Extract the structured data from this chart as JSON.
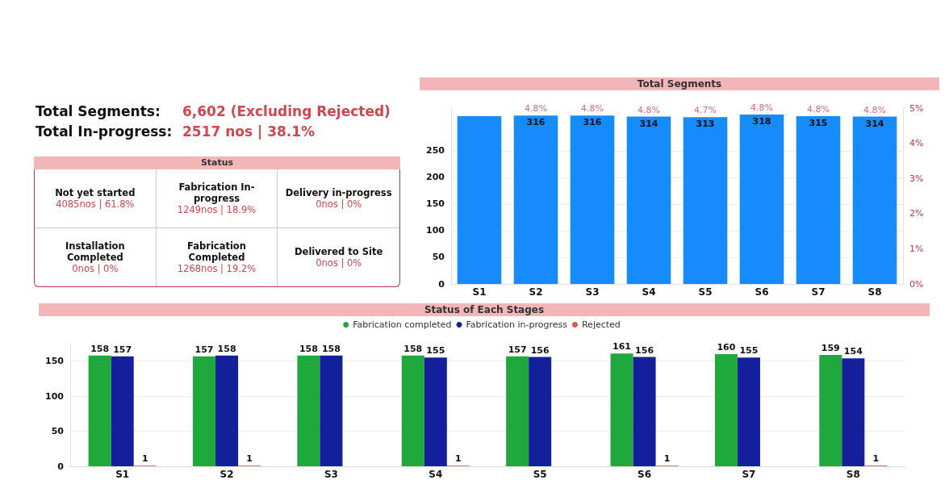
{
  "chart_data": [
    {
      "type": "other",
      "title": "Status",
      "annotations": [
        "Total Segments:",
        "6,602 (Excluding Rejected)",
        "Total In-progress:",
        "2517 nos | 38.1%"
      ],
      "categories": [
        "Not yet started",
        "Fabrication In-progress",
        "Delivery in-progress",
        "Installation Completed",
        "Fabrication Completed",
        "Delivered to Site"
      ],
      "value_labels": [
        "4085nos | 61.8%",
        "1249nos | 18.9%",
        "0nos | 0%",
        "0nos | 0%",
        "1268nos | 19.2%",
        "0nos | 0%"
      ]
    },
    {
      "type": "bar",
      "title": "Total Segments",
      "categories": [
        "S1",
        "S2",
        "S3",
        "S4",
        "S5",
        "S6",
        "S7",
        "S8"
      ],
      "series": [
        {
          "type": "bar",
          "color": "#168bfb",
          "values": [
            315,
            316,
            316,
            314,
            313,
            318,
            315,
            314
          ],
          "value_labels": [
            null,
            "316",
            "316",
            "314",
            "313",
            "318",
            "315",
            "314"
          ]
        }
      ],
      "annotations": [
        {
          "text": "4.8%",
          "x": "S2",
          "y": 316
        },
        {
          "text": "4.8%",
          "x": "S3",
          "y": 316
        },
        {
          "text": "4.8%",
          "x": "S4",
          "y": 314
        },
        {
          "text": "4.7%",
          "x": "S5",
          "y": 313
        },
        {
          "text": "4.8%",
          "x": "S6",
          "y": 318
        },
        {
          "text": "4.8%",
          "x": "S7",
          "y": 315
        },
        {
          "text": "4.8%",
          "x": "S8",
          "y": 314
        }
      ],
      "ylim": [
        0,
        330
      ],
      "yticks": [
        0,
        50,
        100,
        150,
        200,
        250
      ],
      "y2lim": [
        0,
        5
      ],
      "y2ticks": [
        {
          "value": 0,
          "label": "0%"
        },
        {
          "value": 1,
          "label": "1%"
        },
        {
          "value": 2,
          "label": "2%"
        },
        {
          "value": 3,
          "label": "3%"
        },
        {
          "value": 4,
          "label": "4%"
        },
        {
          "value": 5,
          "label": "5%"
        }
      ],
      "grid": "y",
      "legend": false
    },
    {
      "type": "bar",
      "title": "Status of Each Stages",
      "categories": [
        "S1",
        "S2",
        "S3",
        "S4",
        "S5",
        "S6",
        "S7",
        "S8"
      ],
      "series": [
        {
          "name": "Fabrication completed",
          "color": "#1fa83c",
          "values": [
            158,
            157,
            158,
            158,
            157,
            161,
            160,
            159
          ]
        },
        {
          "name": "Fabrication in-progress",
          "color": "#13209a",
          "values": [
            157,
            158,
            158,
            155,
            156,
            156,
            155,
            154
          ]
        },
        {
          "name": "Rejected",
          "color": "#d9534f",
          "values": [
            1,
            1,
            null,
            1,
            null,
            1,
            null,
            1
          ]
        }
      ],
      "ylim": [
        0,
        175
      ],
      "yticks": [
        0,
        50,
        100,
        150
      ],
      "grid": "y",
      "legend": "top",
      "data_labels": true
    }
  ]
}
